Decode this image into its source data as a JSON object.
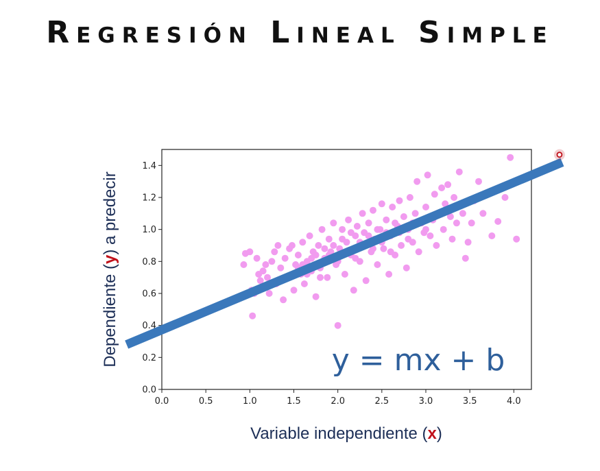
{
  "page": {
    "title": "Regresión Lineal Simple"
  },
  "chart_data": {
    "type": "scatter",
    "xlabel": {
      "before": "Variable independiente (",
      "highlight": "x",
      "after": ")"
    },
    "ylabel": {
      "before": "Dependiente (",
      "highlight": "y",
      "after": ") a predecir"
    },
    "xlim": [
      0.0,
      4.2
    ],
    "ylim": [
      0.0,
      1.5
    ],
    "xticks": [
      "0.0",
      "0.5",
      "1.0",
      "1.5",
      "2.0",
      "2.5",
      "3.0",
      "3.5",
      "4.0"
    ],
    "yticks": [
      "0.0",
      "0.2",
      "0.4",
      "0.6",
      "0.8",
      "1.0",
      "1.2",
      "1.4"
    ],
    "grid": false,
    "points": [
      [
        0.93,
        0.78
      ],
      [
        0.95,
        0.85
      ],
      [
        1.0,
        0.86
      ],
      [
        1.02,
        0.62
      ],
      [
        1.03,
        0.46
      ],
      [
        1.05,
        0.6
      ],
      [
        1.08,
        0.82
      ],
      [
        1.1,
        0.72
      ],
      [
        1.12,
        0.68
      ],
      [
        1.15,
        0.74
      ],
      [
        1.18,
        0.78
      ],
      [
        1.2,
        0.7
      ],
      [
        1.22,
        0.6
      ],
      [
        1.25,
        0.8
      ],
      [
        1.28,
        0.86
      ],
      [
        1.3,
        0.66
      ],
      [
        1.32,
        0.9
      ],
      [
        1.35,
        0.76
      ],
      [
        1.38,
        0.56
      ],
      [
        1.4,
        0.82
      ],
      [
        1.42,
        0.7
      ],
      [
        1.45,
        0.88
      ],
      [
        1.48,
        0.9
      ],
      [
        1.5,
        0.62
      ],
      [
        1.52,
        0.78
      ],
      [
        1.55,
        0.84
      ],
      [
        1.58,
        0.72
      ],
      [
        1.6,
        0.92
      ],
      [
        1.62,
        0.66
      ],
      [
        1.65,
        0.8
      ],
      [
        1.68,
        0.96
      ],
      [
        1.7,
        0.74
      ],
      [
        1.72,
        0.86
      ],
      [
        1.75,
        0.58
      ],
      [
        1.78,
        0.9
      ],
      [
        1.8,
        0.76
      ],
      [
        1.82,
        1.0
      ],
      [
        1.85,
        0.82
      ],
      [
        1.88,
        0.7
      ],
      [
        1.9,
        0.94
      ],
      [
        1.92,
        0.86
      ],
      [
        1.95,
        1.04
      ],
      [
        1.98,
        0.78
      ],
      [
        2.0,
        0.4
      ],
      [
        2.02,
        0.88
      ],
      [
        2.05,
        1.0
      ],
      [
        2.08,
        0.72
      ],
      [
        2.1,
        0.92
      ],
      [
        2.12,
        1.06
      ],
      [
        2.15,
        0.84
      ],
      [
        2.18,
        0.62
      ],
      [
        2.2,
        0.96
      ],
      [
        2.22,
        1.02
      ],
      [
        2.25,
        0.8
      ],
      [
        2.28,
        1.1
      ],
      [
        2.3,
        0.9
      ],
      [
        2.32,
        0.68
      ],
      [
        2.35,
        1.04
      ],
      [
        2.38,
        0.86
      ],
      [
        2.4,
        1.12
      ],
      [
        2.42,
        0.94
      ],
      [
        2.45,
        0.78
      ],
      [
        2.48,
        1.0
      ],
      [
        2.5,
        1.16
      ],
      [
        2.52,
        0.88
      ],
      [
        2.55,
        1.06
      ],
      [
        2.58,
        0.72
      ],
      [
        2.6,
        0.96
      ],
      [
        2.62,
        1.14
      ],
      [
        2.65,
        0.84
      ],
      [
        2.68,
        1.02
      ],
      [
        2.7,
        1.18
      ],
      [
        2.72,
        0.9
      ],
      [
        2.75,
        1.08
      ],
      [
        2.78,
        0.76
      ],
      [
        2.8,
        1.0
      ],
      [
        2.82,
        1.2
      ],
      [
        2.85,
        0.92
      ],
      [
        2.88,
        1.1
      ],
      [
        2.9,
        1.3
      ],
      [
        2.92,
        0.86
      ],
      [
        2.95,
        1.04
      ],
      [
        2.98,
        0.98
      ],
      [
        3.0,
        1.14
      ],
      [
        3.02,
        1.34
      ],
      [
        3.05,
        0.96
      ],
      [
        3.08,
        1.06
      ],
      [
        3.1,
        1.22
      ],
      [
        3.12,
        0.9
      ],
      [
        3.15,
        1.1
      ],
      [
        3.18,
        1.26
      ],
      [
        3.2,
        1.0
      ],
      [
        3.22,
        1.16
      ],
      [
        3.25,
        1.28
      ],
      [
        3.28,
        1.08
      ],
      [
        3.3,
        0.94
      ],
      [
        3.32,
        1.2
      ],
      [
        3.35,
        1.04
      ],
      [
        3.38,
        1.36
      ],
      [
        3.42,
        1.1
      ],
      [
        3.45,
        0.82
      ],
      [
        3.48,
        0.92
      ],
      [
        3.52,
        1.04
      ],
      [
        3.55,
        1.18
      ],
      [
        3.6,
        1.3
      ],
      [
        3.65,
        1.1
      ],
      [
        3.7,
        1.22
      ],
      [
        3.75,
        0.96
      ],
      [
        3.82,
        1.05
      ],
      [
        3.9,
        1.2
      ],
      [
        3.96,
        1.45
      ],
      [
        4.03,
        0.94
      ],
      [
        1.6,
        0.78
      ],
      [
        1.75,
        0.84
      ],
      [
        1.85,
        0.88
      ],
      [
        1.95,
        0.9
      ],
      [
        2.05,
        0.94
      ],
      [
        2.15,
        0.98
      ],
      [
        2.25,
        0.92
      ],
      [
        2.35,
        0.96
      ],
      [
        2.45,
        1.0
      ],
      [
        2.55,
        0.98
      ],
      [
        2.65,
        1.04
      ],
      [
        2.75,
        1.0
      ],
      [
        2.85,
        1.04
      ],
      [
        1.7,
        0.82
      ],
      [
        1.9,
        0.84
      ],
      [
        2.1,
        0.86
      ],
      [
        2.3,
        0.98
      ],
      [
        2.5,
        0.92
      ],
      [
        2.7,
        0.98
      ],
      [
        1.55,
        0.76
      ],
      [
        1.65,
        0.72
      ],
      [
        1.8,
        0.7
      ],
      [
        2.0,
        0.8
      ],
      [
        2.2,
        0.82
      ],
      [
        2.4,
        0.88
      ],
      [
        2.6,
        0.86
      ],
      [
        2.8,
        0.94
      ],
      [
        3.0,
        1.0
      ]
    ],
    "regression_line": {
      "from": [
        -0.4,
        0.28
      ],
      "to": [
        4.55,
        1.42
      ]
    },
    "annotation": "y = mx + b"
  },
  "colors": {
    "points": "#f19bef",
    "line": "#3a78bb",
    "highlight": "#c0111b",
    "equation": "#2e5f9b",
    "axis_label": "#1d2f57"
  }
}
